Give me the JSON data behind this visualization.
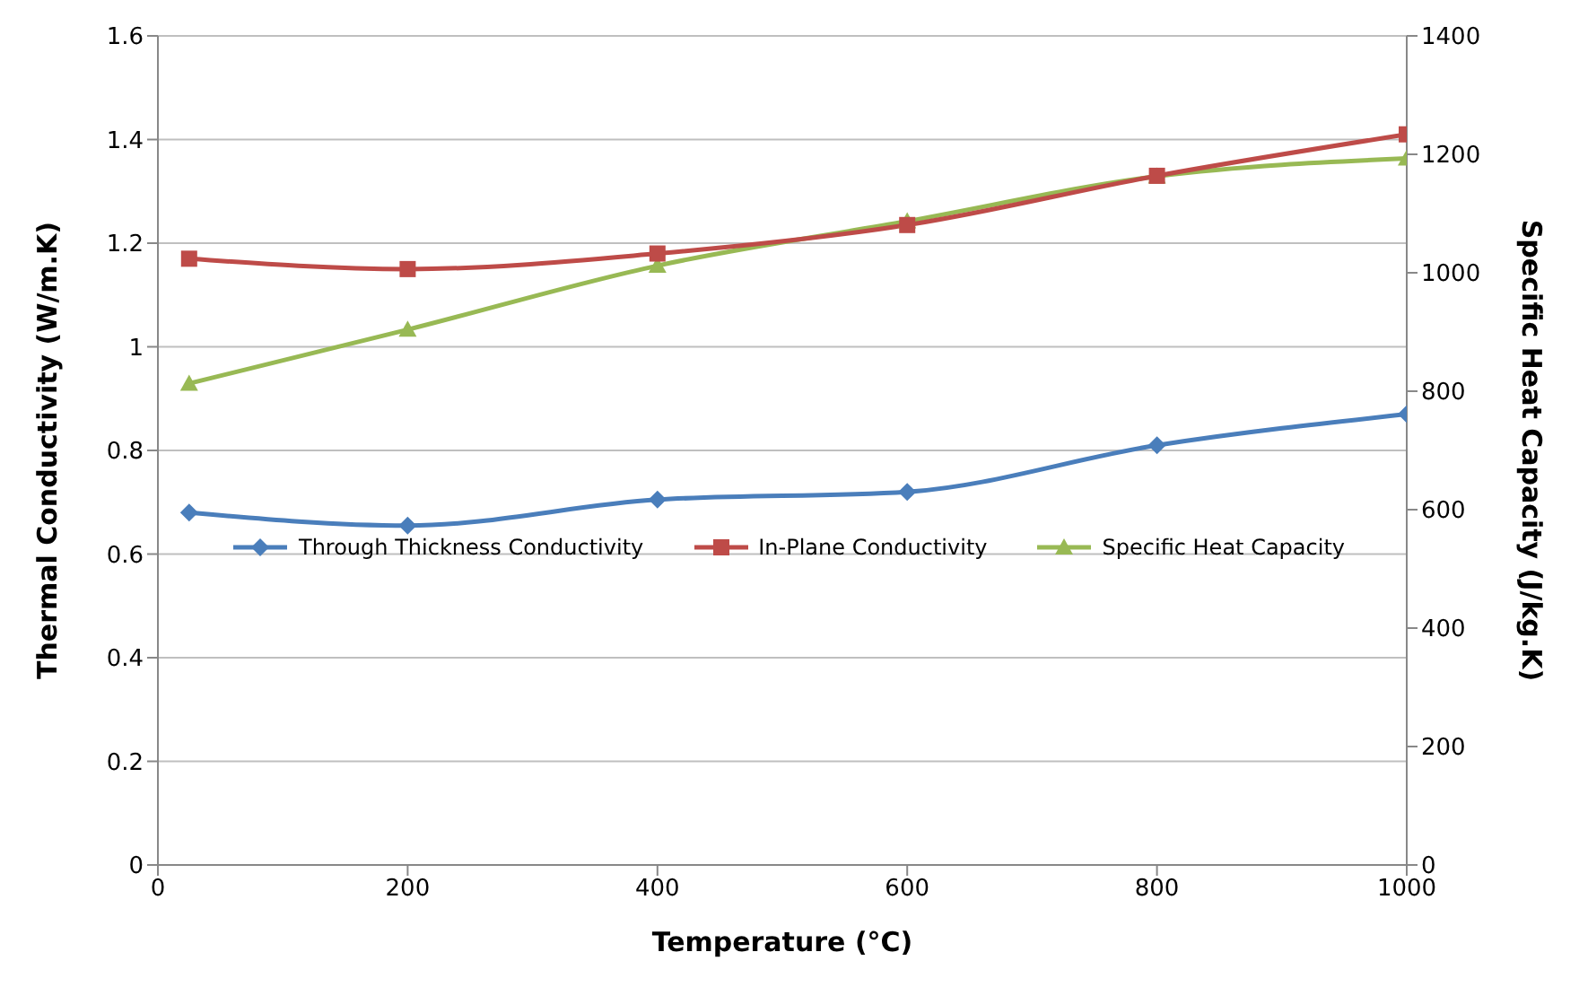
{
  "chart_data": {
    "type": "line",
    "xlabel": "Temperature (°C)",
    "ylabel": "Thermal Conductivity (W/m.K)",
    "y2label": "Specific Heat Capacity (J/kg.K)",
    "x": [
      25,
      200,
      400,
      600,
      800,
      1000
    ],
    "series": [
      {
        "name": "Through Thickness Conductivity",
        "color": "#4a7ebb",
        "marker": "diamond",
        "values": [
          0.68,
          0.655,
          0.705,
          0.72,
          0.81,
          0.87
        ]
      },
      {
        "name": "In-Plane Conductivity",
        "color": "#be4b48",
        "marker": "square",
        "values": [
          1.17,
          1.15,
          1.18,
          1.235,
          1.33,
          1.41
        ]
      },
      {
        "name": "Specific Heat Capacity",
        "color": "#98b954",
        "marker": "triangle",
        "axis": "y2",
        "values": [
          813,
          904,
          1012,
          1087,
          1163,
          1193
        ]
      }
    ],
    "xlim": [
      0,
      1000
    ],
    "xticks": [
      0,
      200,
      400,
      600,
      800,
      1000
    ],
    "ylim": [
      0,
      1.6
    ],
    "yticks": [
      0,
      0.2,
      0.4,
      0.6,
      0.8,
      1,
      1.2,
      1.4,
      1.6
    ],
    "y2lim": [
      0,
      1400
    ],
    "y2ticks": [
      0,
      200,
      400,
      600,
      800,
      1000,
      1200,
      1400
    ],
    "grid": "y",
    "legend": "center"
  }
}
